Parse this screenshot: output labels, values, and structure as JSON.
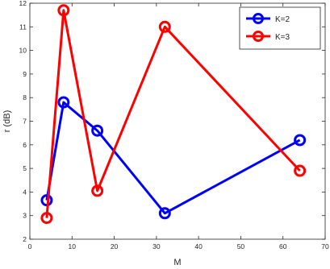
{
  "chart_data": {
    "type": "line",
    "title": "",
    "xlabel": "M",
    "ylabel": "r (dB)",
    "xlim": [
      0,
      70
    ],
    "ylim": [
      2,
      12
    ],
    "xticks": [
      0,
      10,
      20,
      30,
      40,
      50,
      60,
      70
    ],
    "yticks": [
      2,
      3,
      4,
      5,
      6,
      7,
      8,
      9,
      10,
      11,
      12
    ],
    "grid": false,
    "legend_position": "top-right",
    "series": [
      {
        "name": "K=2",
        "color": "#0000ff",
        "marker": "circle",
        "x": [
          4,
          8,
          16,
          32,
          64
        ],
        "y": [
          3.65,
          7.8,
          6.6,
          3.1,
          6.2
        ]
      },
      {
        "name": "K=3",
        "color": "#ff0000",
        "marker": "circle",
        "x": [
          4,
          8,
          16,
          32,
          64
        ],
        "y": [
          2.9,
          11.7,
          4.05,
          11.0,
          4.9
        ]
      }
    ]
  }
}
